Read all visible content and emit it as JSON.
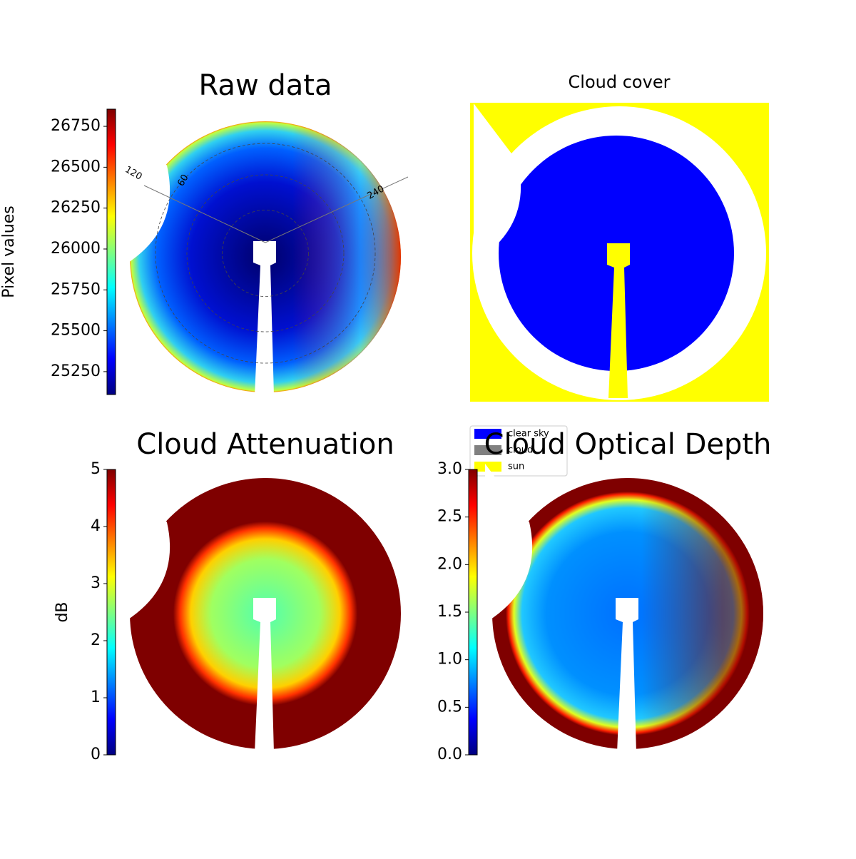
{
  "chart_data": [
    {
      "type": "image",
      "title": "Raw data",
      "colorbar_label": "Pixel values",
      "colormap": "jet",
      "clim": [
        25110,
        26855
      ],
      "yticks": [
        25250,
        25500,
        25750,
        26000,
        26250,
        26500,
        26750
      ],
      "annotations": [
        "120",
        "60",
        "240"
      ]
    },
    {
      "type": "mask",
      "title": "Cloud cover",
      "legend": [
        {
          "name": "clear sky",
          "color": "#0000ff"
        },
        {
          "name": "cloud",
          "color": "#808080"
        },
        {
          "name": "sun",
          "color": "#ffff00"
        }
      ]
    },
    {
      "type": "image",
      "title": "Cloud Attenuation",
      "colorbar_label": "dB",
      "colormap": "jet",
      "clim": [
        0,
        5
      ],
      "yticks": [
        0,
        1,
        2,
        3,
        4,
        5
      ]
    },
    {
      "type": "image",
      "title": "Cloud Optical Depth",
      "colormap": "jet",
      "clim": [
        0,
        3
      ],
      "yticks": [
        {
          "value": 0,
          "label": "0.0"
        },
        0.5,
        {
          "value": 1,
          "label": "1.0"
        },
        1.5,
        {
          "value": 2,
          "label": "2.0"
        },
        2.5,
        {
          "value": 3,
          "label": "3.0"
        }
      ]
    }
  ]
}
